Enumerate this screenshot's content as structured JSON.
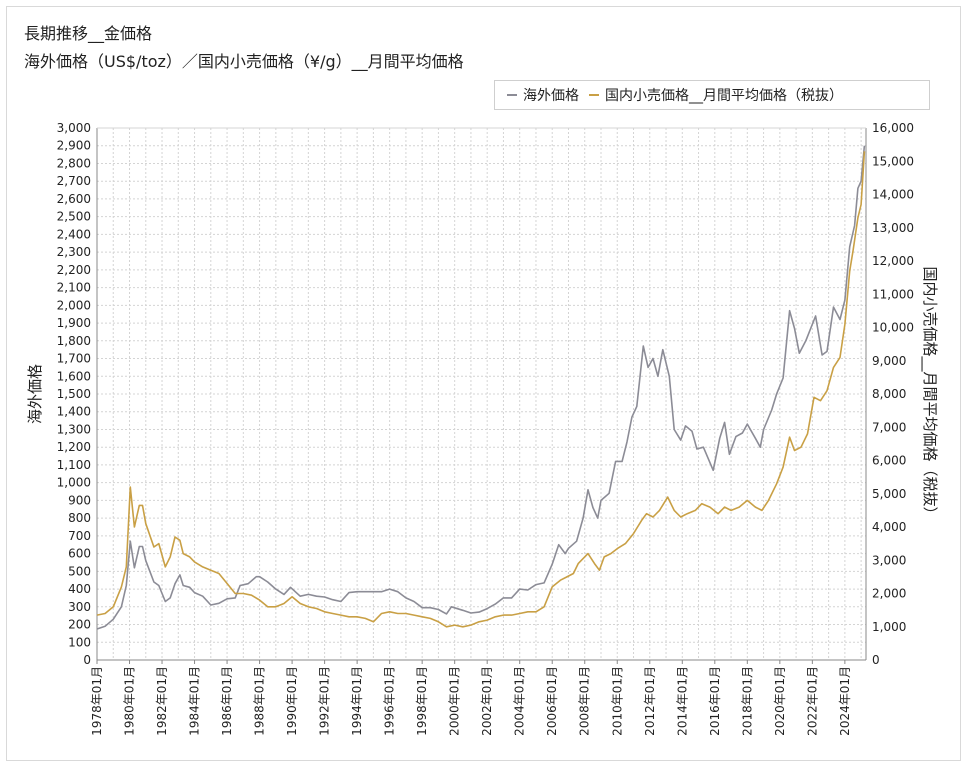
{
  "title_line1": "長期推移__金価格",
  "title_line2": "海外価格（US$/toz）／国内小売価格（¥/g）__月間平均価格",
  "legend": [
    {
      "label": "海外価格",
      "color": "#8c8c96"
    },
    {
      "label": "国内小売価格__月間平均価格（税抜）",
      "color": "#c9a045"
    }
  ],
  "chart_data": {
    "type": "line",
    "ylabel": "海外価格",
    "y2label": "国内小売価格__月間平均価格（税抜）",
    "ylim": [
      0,
      3000
    ],
    "y2lim": [
      0,
      16000
    ],
    "yticks": [
      "0",
      "100",
      "200",
      "300",
      "400",
      "500",
      "600",
      "700",
      "800",
      "900",
      "1,000",
      "1,100",
      "1,200",
      "1,300",
      "1,400",
      "1,500",
      "1,600",
      "1,700",
      "1,800",
      "1,900",
      "2,000",
      "2,100",
      "2,200",
      "2,300",
      "2,400",
      "2,500",
      "2,600",
      "2,700",
      "2,800",
      "2,900",
      "3,000"
    ],
    "y2ticks": [
      "0",
      "1,000",
      "2,000",
      "3,000",
      "4,000",
      "5,000",
      "6,000",
      "7,000",
      "8,000",
      "9,000",
      "10,000",
      "11,000",
      "12,000",
      "13,000",
      "14,000",
      "15,000",
      "16,000"
    ],
    "xticks": [
      "1978年01月",
      "1980年01月",
      "1982年01月",
      "1984年01月",
      "1986年01月",
      "1988年01月",
      "1990年01月",
      "1992年01月",
      "1994年01月",
      "1996年01月",
      "1998年01月",
      "2000年01月",
      "2002年01月",
      "2004年01月",
      "2006年01月",
      "2008年01月",
      "2010年01月",
      "2012年01月",
      "2014年01月",
      "2016年01月",
      "2018年01月",
      "2020年01月",
      "2022年01月",
      "2024年01月"
    ],
    "grid": true,
    "legend_position": "top-right",
    "series": [
      {
        "name": "海外価格",
        "axis": "left",
        "color": "#8c8c96",
        "points": [
          [
            1978.0,
            175
          ],
          [
            1978.5,
            190
          ],
          [
            1979.0,
            230
          ],
          [
            1979.5,
            300
          ],
          [
            1979.8,
            420
          ],
          [
            1980.05,
            670
          ],
          [
            1980.3,
            520
          ],
          [
            1980.6,
            640
          ],
          [
            1980.8,
            640
          ],
          [
            1981.0,
            560
          ],
          [
            1981.5,
            440
          ],
          [
            1981.8,
            420
          ],
          [
            1982.2,
            330
          ],
          [
            1982.5,
            350
          ],
          [
            1982.8,
            430
          ],
          [
            1983.1,
            480
          ],
          [
            1983.3,
            420
          ],
          [
            1983.7,
            410
          ],
          [
            1984.0,
            380
          ],
          [
            1984.5,
            360
          ],
          [
            1985.0,
            310
          ],
          [
            1985.5,
            320
          ],
          [
            1986.0,
            345
          ],
          [
            1986.5,
            350
          ],
          [
            1986.8,
            420
          ],
          [
            1987.3,
            430
          ],
          [
            1987.8,
            470
          ],
          [
            1988.0,
            470
          ],
          [
            1988.5,
            440
          ],
          [
            1989.0,
            400
          ],
          [
            1989.5,
            370
          ],
          [
            1989.9,
            410
          ],
          [
            1990.5,
            360
          ],
          [
            1991.0,
            370
          ],
          [
            1991.5,
            360
          ],
          [
            1992.0,
            355
          ],
          [
            1992.5,
            340
          ],
          [
            1993.0,
            330
          ],
          [
            1993.5,
            380
          ],
          [
            1994.0,
            385
          ],
          [
            1994.5,
            385
          ],
          [
            1995.0,
            385
          ],
          [
            1995.5,
            385
          ],
          [
            1996.0,
            400
          ],
          [
            1996.5,
            385
          ],
          [
            1997.0,
            350
          ],
          [
            1997.5,
            330
          ],
          [
            1998.0,
            295
          ],
          [
            1998.5,
            295
          ],
          [
            1999.0,
            285
          ],
          [
            1999.5,
            260
          ],
          [
            1999.8,
            300
          ],
          [
            2000.5,
            280
          ],
          [
            2001.0,
            265
          ],
          [
            2001.5,
            270
          ],
          [
            2002.0,
            290
          ],
          [
            2002.5,
            315
          ],
          [
            2003.0,
            350
          ],
          [
            2003.5,
            350
          ],
          [
            2004.0,
            400
          ],
          [
            2004.5,
            395
          ],
          [
            2005.0,
            425
          ],
          [
            2005.5,
            435
          ],
          [
            2006.0,
            540
          ],
          [
            2006.4,
            650
          ],
          [
            2006.8,
            600
          ],
          [
            2007.0,
            630
          ],
          [
            2007.5,
            670
          ],
          [
            2007.9,
            800
          ],
          [
            2008.2,
            960
          ],
          [
            2008.5,
            860
          ],
          [
            2008.8,
            800
          ],
          [
            2009.0,
            900
          ],
          [
            2009.5,
            940
          ],
          [
            2009.9,
            1120
          ],
          [
            2010.3,
            1120
          ],
          [
            2010.6,
            1230
          ],
          [
            2010.9,
            1370
          ],
          [
            2011.2,
            1430
          ],
          [
            2011.6,
            1770
          ],
          [
            2011.9,
            1650
          ],
          [
            2012.2,
            1700
          ],
          [
            2012.5,
            1600
          ],
          [
            2012.8,
            1750
          ],
          [
            2013.2,
            1600
          ],
          [
            2013.5,
            1300
          ],
          [
            2013.9,
            1240
          ],
          [
            2014.2,
            1320
          ],
          [
            2014.6,
            1290
          ],
          [
            2014.9,
            1190
          ],
          [
            2015.3,
            1200
          ],
          [
            2015.9,
            1070
          ],
          [
            2016.3,
            1250
          ],
          [
            2016.6,
            1340
          ],
          [
            2016.9,
            1160
          ],
          [
            2017.3,
            1260
          ],
          [
            2017.7,
            1280
          ],
          [
            2018.0,
            1330
          ],
          [
            2018.5,
            1250
          ],
          [
            2018.8,
            1200
          ],
          [
            2019.0,
            1300
          ],
          [
            2019.5,
            1410
          ],
          [
            2019.8,
            1500
          ],
          [
            2020.2,
            1590
          ],
          [
            2020.6,
            1970
          ],
          [
            2020.9,
            1870
          ],
          [
            2021.2,
            1730
          ],
          [
            2021.6,
            1800
          ],
          [
            2022.2,
            1940
          ],
          [
            2022.6,
            1720
          ],
          [
            2022.9,
            1740
          ],
          [
            2023.3,
            1990
          ],
          [
            2023.7,
            1920
          ],
          [
            2024.0,
            2030
          ],
          [
            2024.3,
            2330
          ],
          [
            2024.6,
            2450
          ],
          [
            2024.8,
            2660
          ],
          [
            2025.0,
            2700
          ],
          [
            2025.2,
            2900
          ]
        ]
      },
      {
        "name": "国内小売価格__月間平均価格（税抜）",
        "axis": "right",
        "color": "#c9a045",
        "points": [
          [
            1978.0,
            1350
          ],
          [
            1978.5,
            1400
          ],
          [
            1979.0,
            1600
          ],
          [
            1979.5,
            2200
          ],
          [
            1979.8,
            2800
          ],
          [
            1980.05,
            5200
          ],
          [
            1980.3,
            4000
          ],
          [
            1980.6,
            4650
          ],
          [
            1980.8,
            4650
          ],
          [
            1981.0,
            4100
          ],
          [
            1981.5,
            3400
          ],
          [
            1981.8,
            3500
          ],
          [
            1982.2,
            2800
          ],
          [
            1982.5,
            3100
          ],
          [
            1982.8,
            3700
          ],
          [
            1983.1,
            3600
          ],
          [
            1983.3,
            3200
          ],
          [
            1983.7,
            3100
          ],
          [
            1984.0,
            2950
          ],
          [
            1984.5,
            2800
          ],
          [
            1985.0,
            2700
          ],
          [
            1985.5,
            2600
          ],
          [
            1986.0,
            2300
          ],
          [
            1986.5,
            2000
          ],
          [
            1987.0,
            2000
          ],
          [
            1987.5,
            1950
          ],
          [
            1988.0,
            1800
          ],
          [
            1988.5,
            1600
          ],
          [
            1989.0,
            1600
          ],
          [
            1989.5,
            1700
          ],
          [
            1990.0,
            1900
          ],
          [
            1990.5,
            1700
          ],
          [
            1991.0,
            1600
          ],
          [
            1991.5,
            1550
          ],
          [
            1992.0,
            1450
          ],
          [
            1992.5,
            1400
          ],
          [
            1993.0,
            1350
          ],
          [
            1993.5,
            1300
          ],
          [
            1994.0,
            1300
          ],
          [
            1994.5,
            1250
          ],
          [
            1995.0,
            1150
          ],
          [
            1995.5,
            1400
          ],
          [
            1996.0,
            1450
          ],
          [
            1996.5,
            1400
          ],
          [
            1997.0,
            1400
          ],
          [
            1997.5,
            1350
          ],
          [
            1998.0,
            1300
          ],
          [
            1998.5,
            1250
          ],
          [
            1999.0,
            1150
          ],
          [
            1999.5,
            1000
          ],
          [
            2000.0,
            1050
          ],
          [
            2000.5,
            1000
          ],
          [
            2001.0,
            1050
          ],
          [
            2001.5,
            1150
          ],
          [
            2002.0,
            1200
          ],
          [
            2002.5,
            1300
          ],
          [
            2003.0,
            1350
          ],
          [
            2003.5,
            1350
          ],
          [
            2004.0,
            1400
          ],
          [
            2004.5,
            1450
          ],
          [
            2005.0,
            1450
          ],
          [
            2005.5,
            1600
          ],
          [
            2006.0,
            2200
          ],
          [
            2006.5,
            2400
          ],
          [
            2006.9,
            2500
          ],
          [
            2007.3,
            2600
          ],
          [
            2007.6,
            2900
          ],
          [
            2008.2,
            3200
          ],
          [
            2008.6,
            2900
          ],
          [
            2008.9,
            2700
          ],
          [
            2009.2,
            3100
          ],
          [
            2009.6,
            3200
          ],
          [
            2010.0,
            3350
          ],
          [
            2010.5,
            3500
          ],
          [
            2011.0,
            3800
          ],
          [
            2011.5,
            4200
          ],
          [
            2011.8,
            4400
          ],
          [
            2012.2,
            4300
          ],
          [
            2012.6,
            4500
          ],
          [
            2013.1,
            4900
          ],
          [
            2013.5,
            4500
          ],
          [
            2013.9,
            4300
          ],
          [
            2014.3,
            4400
          ],
          [
            2014.8,
            4500
          ],
          [
            2015.2,
            4700
          ],
          [
            2015.7,
            4600
          ],
          [
            2016.2,
            4400
          ],
          [
            2016.6,
            4600
          ],
          [
            2017.0,
            4500
          ],
          [
            2017.5,
            4600
          ],
          [
            2018.0,
            4800
          ],
          [
            2018.5,
            4600
          ],
          [
            2018.9,
            4500
          ],
          [
            2019.3,
            4800
          ],
          [
            2019.8,
            5300
          ],
          [
            2020.2,
            5800
          ],
          [
            2020.6,
            6700
          ],
          [
            2020.9,
            6300
          ],
          [
            2021.3,
            6400
          ],
          [
            2021.7,
            6800
          ],
          [
            2022.1,
            7900
          ],
          [
            2022.5,
            7800
          ],
          [
            2022.9,
            8100
          ],
          [
            2023.3,
            8800
          ],
          [
            2023.7,
            9100
          ],
          [
            2024.0,
            10100
          ],
          [
            2024.3,
            11700
          ],
          [
            2024.5,
            12300
          ],
          [
            2024.8,
            13300
          ],
          [
            2025.0,
            13700
          ],
          [
            2025.2,
            15300
          ]
        ]
      }
    ]
  }
}
